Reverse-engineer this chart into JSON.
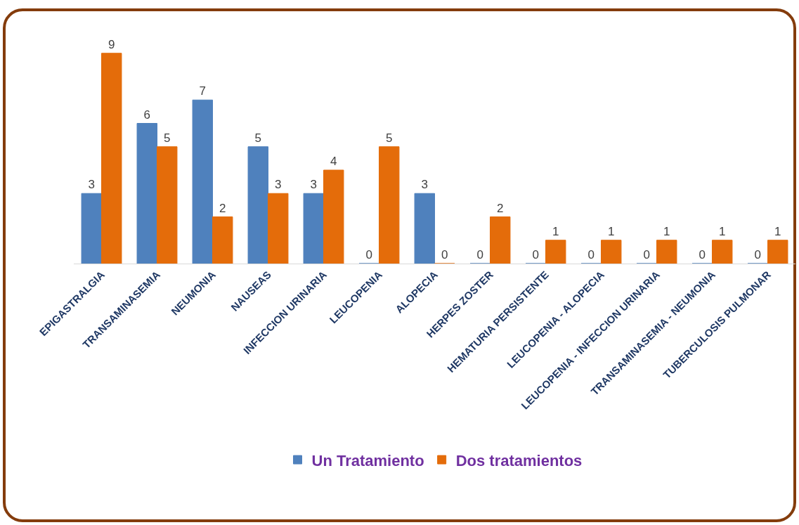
{
  "chart_data": {
    "type": "bar",
    "categories": [
      "EPIGASTRALGIA",
      "TRANSAMINASEMIA",
      "NEUMONIA",
      "NAUSEAS",
      "INFECCION URINARIA",
      "LEUCOPENIA",
      "ALOPECIA",
      "HERPES ZOSTER",
      "HEMATURIA PERSISTENTE",
      "LEUCOPENIA - ALOPECIA",
      "LEUCOPENIA - INFECCION URINARIA",
      "TRANSAMINASEMIA - NEUMONIA",
      "TUBERCULOSIS PULMONAR"
    ],
    "series": [
      {
        "name": "Un Tratamiento",
        "color": "#4f81bd",
        "values": [
          3,
          6,
          7,
          5,
          3,
          0,
          3,
          0,
          0,
          0,
          0,
          0,
          0
        ]
      },
      {
        "name": "Dos tratamientos",
        "color": "#e46c0a",
        "values": [
          9,
          5,
          2,
          3,
          4,
          5,
          0,
          2,
          1,
          1,
          1,
          1,
          1
        ]
      }
    ],
    "data_labels": true,
    "grid": false,
    "legend": "bottom"
  }
}
